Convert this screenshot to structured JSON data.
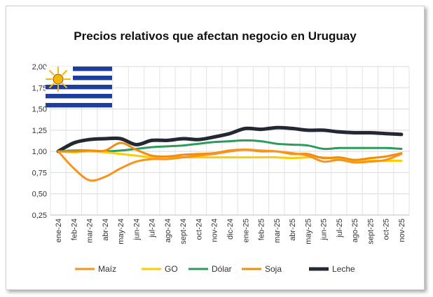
{
  "chart_data": {
    "type": "line",
    "title": "Precios relativos que afectan negocio en Uruguay",
    "xlabel": "",
    "ylabel": "",
    "ylim": [
      0.25,
      2.0
    ],
    "yticks": [
      "0,25",
      "0,50",
      "0,75",
      "1,00",
      "1,25",
      "1,50",
      "1,75",
      "2,00"
    ],
    "ytick_values": [
      0.25,
      0.5,
      0.75,
      1.0,
      1.25,
      1.5,
      1.75,
      2.0
    ],
    "categories": [
      "ene-24",
      "feb-24",
      "mar-24",
      "abr-24",
      "may-24",
      "jun-24",
      "jul-24",
      "ago-24",
      "sept-24",
      "oct-24",
      "nov-24",
      "dic-24",
      "ene-25",
      "feb-25",
      "mar-25",
      "abr-25",
      "may-25",
      "jun-25",
      "jul-25",
      "ago-25",
      "sept-25",
      "oct-25",
      "nov-25"
    ],
    "grid": true,
    "legend_position": "bottom",
    "series": [
      {
        "name": "Maíz",
        "color": "#f7941d",
        "values": [
          1.0,
          0.8,
          0.66,
          0.7,
          0.8,
          0.88,
          0.91,
          0.91,
          0.93,
          0.95,
          0.97,
          1.0,
          1.02,
          1.01,
          1.0,
          0.98,
          0.95,
          0.88,
          0.9,
          0.87,
          0.88,
          0.9,
          0.97
        ]
      },
      {
        "name": "GO",
        "color": "#ffcc00",
        "values": [
          1.0,
          0.99,
          1.0,
          0.99,
          0.97,
          0.95,
          0.93,
          0.94,
          0.93,
          0.93,
          0.93,
          0.93,
          0.93,
          0.93,
          0.93,
          0.92,
          0.93,
          0.93,
          0.91,
          0.89,
          0.89,
          0.89,
          0.89
        ]
      },
      {
        "name": "Dólar",
        "color": "#2e9a5c",
        "values": [
          1.0,
          1.01,
          1.01,
          1.0,
          1.01,
          1.03,
          1.05,
          1.06,
          1.07,
          1.09,
          1.11,
          1.12,
          1.13,
          1.12,
          1.09,
          1.08,
          1.07,
          1.03,
          1.04,
          1.04,
          1.04,
          1.04,
          1.03
        ]
      },
      {
        "name": "Soja",
        "color": "#f08c10",
        "values": [
          1.0,
          1.0,
          1.01,
          1.01,
          1.1,
          1.02,
          0.95,
          0.94,
          0.96,
          0.97,
          0.98,
          1.01,
          1.02,
          1.0,
          1.0,
          0.97,
          0.97,
          0.92,
          0.93,
          0.9,
          0.92,
          0.94,
          0.98
        ]
      },
      {
        "name": "Leche",
        "color": "#222933",
        "values": [
          1.0,
          1.1,
          1.14,
          1.15,
          1.15,
          1.08,
          1.13,
          1.13,
          1.15,
          1.14,
          1.17,
          1.21,
          1.27,
          1.26,
          1.28,
          1.27,
          1.25,
          1.25,
          1.23,
          1.22,
          1.22,
          1.21,
          1.2
        ]
      }
    ]
  }
}
